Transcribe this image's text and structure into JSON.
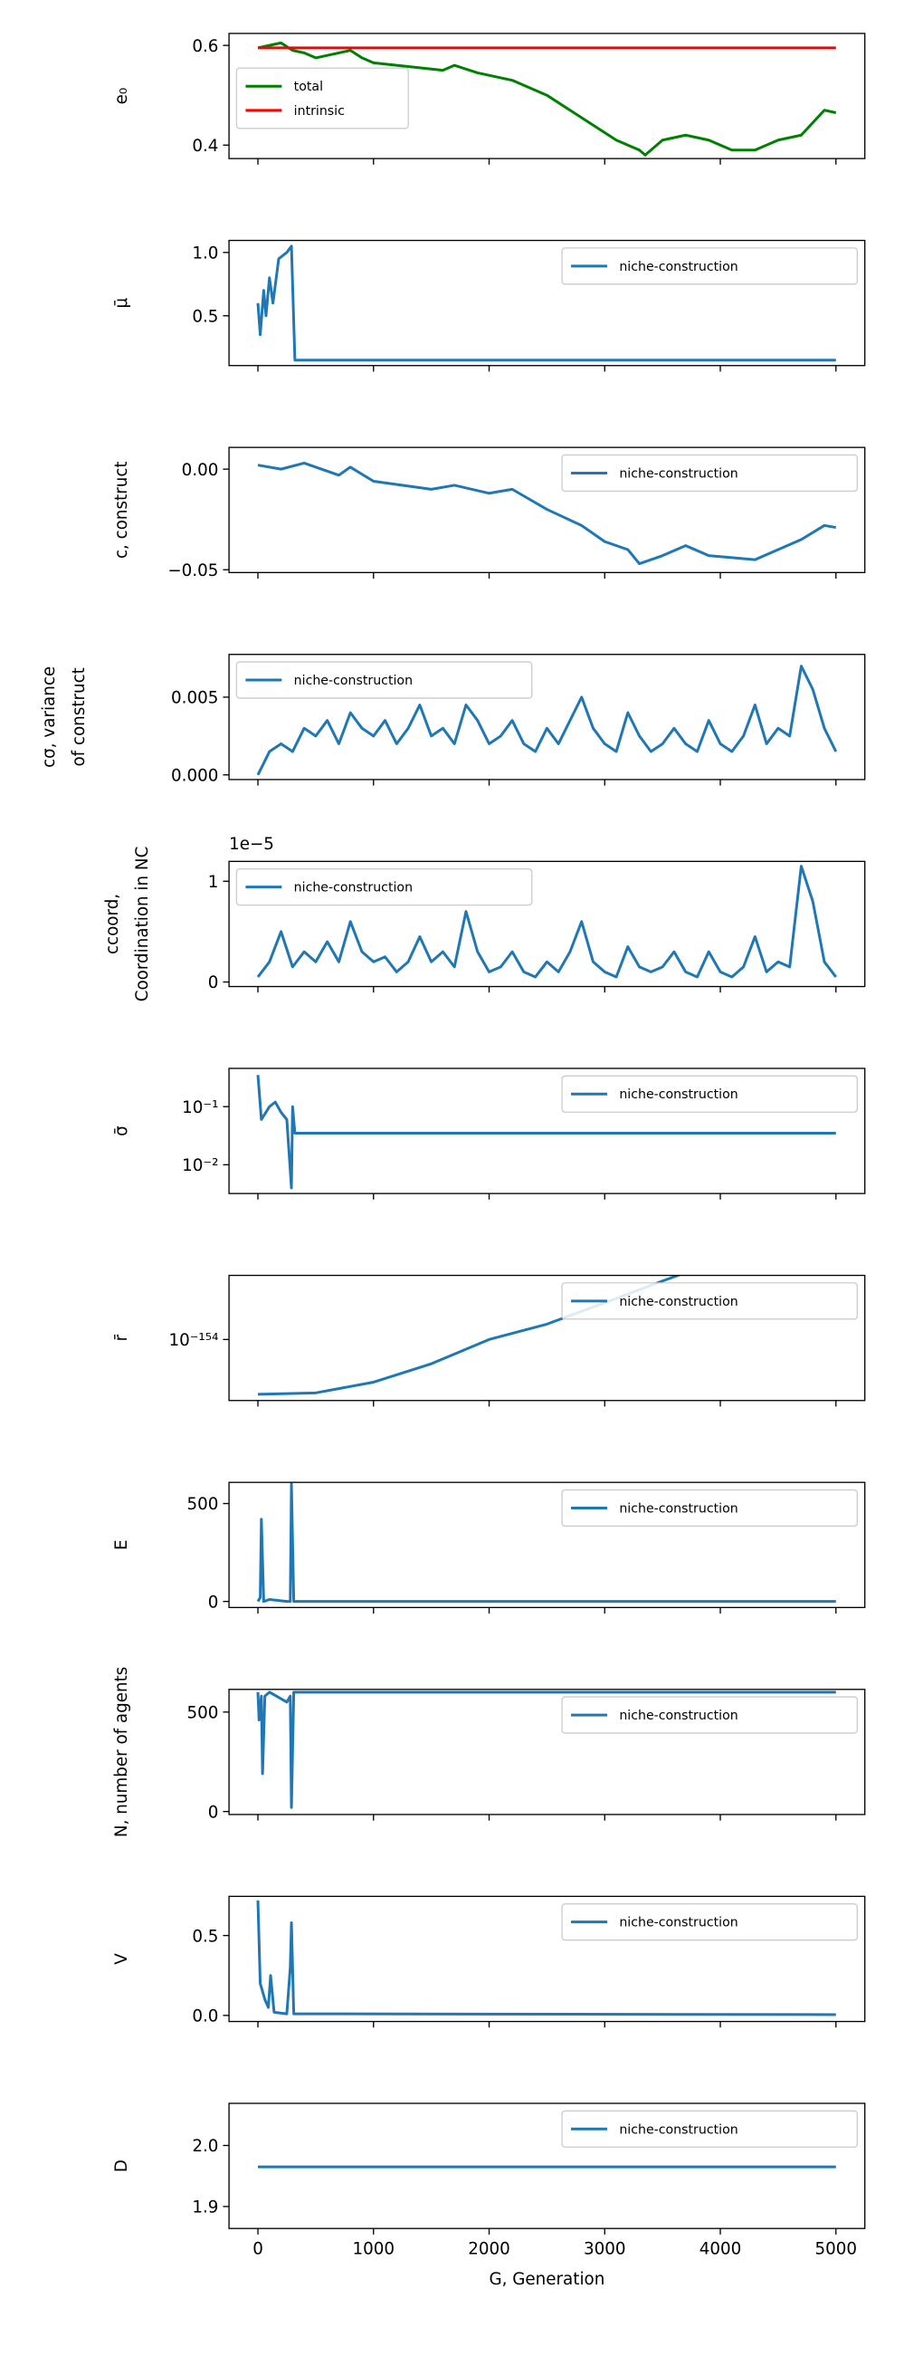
{
  "chart_data": [
    {
      "type": "line",
      "ylabel": "e₀",
      "xlim": [
        -250,
        5250
      ],
      "xticks": [
        0,
        1000,
        2000,
        3000,
        4000,
        5000
      ],
      "ylim": [
        0.373,
        0.624
      ],
      "yticks": [
        0.4,
        0.6
      ],
      "legend": "upper left",
      "x": [
        0,
        100,
        200,
        300,
        400,
        500,
        600,
        700,
        800,
        900,
        1000,
        1200,
        1400,
        1600,
        1700,
        1900,
        2200,
        2500,
        2700,
        2900,
        3100,
        3300,
        3350,
        3500,
        3700,
        3900,
        4100,
        4300,
        4500,
        4700,
        4900,
        5000
      ],
      "series": [
        {
          "name": "total",
          "color": "#008000",
          "values": [
            0.595,
            0.6,
            0.605,
            0.59,
            0.585,
            0.575,
            0.58,
            0.585,
            0.59,
            0.575,
            0.565,
            0.56,
            0.555,
            0.55,
            0.56,
            0.545,
            0.53,
            0.5,
            0.47,
            0.44,
            0.41,
            0.39,
            0.38,
            0.41,
            0.42,
            0.41,
            0.39,
            0.39,
            0.41,
            0.42,
            0.47,
            0.465
          ]
        },
        {
          "name": "intrinsic",
          "color": "#ff0000",
          "values": [
            0.595,
            0.595,
            0.595,
            0.595,
            0.595,
            0.595,
            0.595,
            0.595,
            0.595,
            0.595,
            0.595,
            0.595,
            0.595,
            0.595,
            0.595,
            0.595,
            0.595,
            0.595,
            0.595,
            0.595,
            0.595,
            0.595,
            0.595,
            0.595,
            0.595,
            0.595,
            0.595,
            0.595,
            0.595,
            0.595,
            0.595,
            0.595
          ]
        }
      ]
    },
    {
      "type": "line",
      "ylabel": "μ̄",
      "xlim": [
        -250,
        5250
      ],
      "xticks": [
        0,
        1000,
        2000,
        3000,
        4000,
        5000
      ],
      "ylim": [
        0.107,
        1.095
      ],
      "yticks": [
        0.5,
        {
          "value": 1,
          "label": "1.0"
        }
      ],
      "legend": "upper right",
      "x": [
        0,
        20,
        50,
        70,
        100,
        130,
        180,
        250,
        290,
        320,
        5000
      ],
      "series": [
        {
          "name": "niche-construction",
          "color": "#1f77b4",
          "values": [
            0.6,
            0.35,
            0.7,
            0.5,
            0.8,
            0.6,
            0.95,
            1.0,
            1.05,
            0.15,
            0.15
          ]
        }
      ]
    },
    {
      "type": "line",
      "ylabel": "c, construct",
      "xlim": [
        -250,
        5250
      ],
      "xticks": [
        0,
        1000,
        2000,
        3000,
        4000,
        5000
      ],
      "ylim": [
        -0.0514,
        0.0108
      ],
      "yticks": [
        {
          "value": -0.05,
          "label": "−0.05"
        },
        {
          "value": 0,
          "label": "0.00"
        }
      ],
      "legend": "upper right",
      "x": [
        0,
        200,
        400,
        700,
        800,
        1000,
        1500,
        1700,
        2000,
        2200,
        2500,
        2800,
        3000,
        3200,
        3300,
        3500,
        3700,
        3900,
        4100,
        4300,
        4500,
        4700,
        4900,
        5000
      ],
      "series": [
        {
          "name": "niche-construction",
          "color": "#1f77b4",
          "values": [
            0.002,
            0,
            0.003,
            -0.003,
            0.001,
            -0.006,
            -0.01,
            -0.008,
            -0.012,
            -0.01,
            -0.02,
            -0.028,
            -0.036,
            -0.04,
            -0.047,
            -0.043,
            -0.038,
            -0.043,
            -0.044,
            -0.045,
            -0.04,
            -0.035,
            -0.028,
            -0.029
          ]
        }
      ]
    },
    {
      "type": "line",
      "ylabel": [
        "cσ, variance",
        "of construct"
      ],
      "xlim": [
        -250,
        5250
      ],
      "xticks": [
        0,
        1000,
        2000,
        3000,
        4000,
        5000
      ],
      "ylim": [
        -0.0003,
        0.00775
      ],
      "yticks": [
        {
          "value": 0,
          "label": "0.000"
        },
        0.005
      ],
      "legend": "upper left",
      "x": [
        0,
        100,
        200,
        300,
        400,
        500,
        600,
        700,
        800,
        900,
        1000,
        1100,
        1200,
        1300,
        1400,
        1500,
        1600,
        1700,
        1800,
        1900,
        2000,
        2100,
        2200,
        2300,
        2400,
        2500,
        2600,
        2700,
        2800,
        2900,
        3000,
        3100,
        3200,
        3300,
        3400,
        3500,
        3600,
        3700,
        3800,
        3900,
        4000,
        4100,
        4200,
        4300,
        4400,
        4500,
        4600,
        4700,
        4800,
        4900,
        5000
      ],
      "series": [
        {
          "name": "niche-construction",
          "color": "#1f77b4",
          "values": [
            0.0,
            0.0015,
            0.002,
            0.0015,
            0.003,
            0.0025,
            0.0035,
            0.002,
            0.004,
            0.003,
            0.0025,
            0.0035,
            0.002,
            0.003,
            0.0045,
            0.0025,
            0.003,
            0.002,
            0.0045,
            0.0035,
            0.002,
            0.0025,
            0.0035,
            0.002,
            0.0015,
            0.003,
            0.002,
            0.0035,
            0.005,
            0.003,
            0.002,
            0.0015,
            0.004,
            0.0025,
            0.0015,
            0.002,
            0.003,
            0.002,
            0.0015,
            0.0035,
            0.002,
            0.0015,
            0.0025,
            0.0045,
            0.002,
            0.003,
            0.0025,
            0.007,
            0.0055,
            0.003,
            0.0015
          ]
        }
      ]
    },
    {
      "type": "line",
      "ylabel": [
        "ccoord,",
        "Coordination in NC"
      ],
      "offset_text": "1e−5",
      "xlim": [
        -250,
        5250
      ],
      "xticks": [
        0,
        1000,
        2000,
        3000,
        4000,
        5000
      ],
      "ylim": [
        -0.045,
        1.197
      ],
      "yticks": [
        0,
        1
      ],
      "legend": "upper left",
      "x": [
        0,
        100,
        200,
        300,
        400,
        500,
        600,
        700,
        800,
        900,
        1000,
        1100,
        1200,
        1300,
        1400,
        1500,
        1600,
        1700,
        1800,
        1900,
        2000,
        2100,
        2200,
        2300,
        2400,
        2500,
        2600,
        2700,
        2800,
        2900,
        3000,
        3100,
        3200,
        3300,
        3400,
        3500,
        3600,
        3700,
        3800,
        3900,
        4000,
        4100,
        4200,
        4300,
        4400,
        4500,
        4600,
        4700,
        4800,
        4900,
        5000
      ],
      "series": [
        {
          "name": "niche-construction",
          "color": "#1f77b4",
          "values": [
            0.05,
            0.2,
            0.5,
            0.15,
            0.3,
            0.2,
            0.4,
            0.2,
            0.6,
            0.3,
            0.2,
            0.25,
            0.1,
            0.2,
            0.45,
            0.2,
            0.3,
            0.15,
            0.7,
            0.3,
            0.1,
            0.15,
            0.3,
            0.1,
            0.05,
            0.2,
            0.1,
            0.3,
            0.6,
            0.2,
            0.1,
            0.05,
            0.35,
            0.15,
            0.1,
            0.15,
            0.3,
            0.1,
            0.05,
            0.3,
            0.1,
            0.05,
            0.15,
            0.45,
            0.1,
            0.2,
            0.15,
            1.15,
            0.8,
            0.2,
            0.05
          ]
        }
      ]
    },
    {
      "type": "line",
      "ylabel": "σ̄",
      "log_y": true,
      "xlim": [
        -250,
        5250
      ],
      "xticks": [
        0,
        1000,
        2000,
        3000,
        4000,
        5000
      ],
      "ylim": [
        0.0032,
        0.455
      ],
      "yticks": [
        {
          "value": 0.01,
          "label": "10⁻²"
        },
        {
          "value": 0.1,
          "label": "10⁻¹"
        }
      ],
      "legend": "upper right",
      "x": [
        0,
        30,
        100,
        150,
        200,
        250,
        290,
        300,
        320,
        5000
      ],
      "series": [
        {
          "name": "niche-construction",
          "color": "#1f77b4",
          "values": [
            0.35,
            0.06,
            0.1,
            0.12,
            0.08,
            0.06,
            0.004,
            0.1,
            0.035,
            0.035
          ]
        }
      ]
    },
    {
      "type": "line",
      "ylabel": "r̄",
      "log_y": true,
      "xlim": [
        -250,
        5250
      ],
      "xticks": [
        0,
        1000,
        2000,
        3000,
        4000,
        5000
      ],
      "ylim": [
        1e-153,
        8.9e-156
      ],
      "yticks": [
        {
          "value": 1e-154,
          "label": "10⁻¹⁵⁴"
        }
      ],
      "legend": "upper right",
      "x": [
        0,
        500,
        1000,
        1500,
        2000,
        2500,
        3000,
        3500,
        3700
      ],
      "series": [
        {
          "name": "niche-construction",
          "color": "#1f77b4",
          "values": [
            7.9e-154,
            7.5e-154,
            5e-154,
            2.5e-154,
            1e-154,
            5.6e-155,
            2.5e-155,
            1.1e-155,
            8e-156
          ]
        }
      ]
    },
    {
      "type": "line",
      "ylabel": "E",
      "xlim": [
        -250,
        5250
      ],
      "xticks": [
        0,
        1000,
        2000,
        3000,
        4000,
        5000
      ],
      "ylim": [
        -31,
        608
      ],
      "yticks": [
        0,
        500
      ],
      "legend": "upper right",
      "x": [
        0,
        20,
        30,
        50,
        100,
        250,
        280,
        290,
        310,
        5000
      ],
      "series": [
        {
          "name": "niche-construction",
          "color": "#1f77b4",
          "values": [
            0,
            20,
            420,
            0,
            10,
            0,
            0,
            600,
            0,
            0
          ]
        }
      ]
    },
    {
      "type": "line",
      "ylabel": "N, number of agents",
      "xlim": [
        -250,
        5250
      ],
      "xticks": [
        0,
        1000,
        2000,
        3000,
        4000,
        5000
      ],
      "ylim": [
        -15,
        614
      ],
      "yticks": [
        0,
        500
      ],
      "legend": "upper right",
      "x": [
        0,
        10,
        30,
        40,
        60,
        100,
        250,
        280,
        290,
        310,
        5000
      ],
      "series": [
        {
          "name": "niche-construction",
          "color": "#1f77b4",
          "values": [
            600,
            460,
            580,
            190,
            580,
            600,
            550,
            580,
            20,
            600,
            600
          ]
        }
      ]
    },
    {
      "type": "line",
      "ylabel": "V",
      "xlim": [
        -250,
        5250
      ],
      "xticks": [
        0,
        1000,
        2000,
        3000,
        4000,
        5000
      ],
      "ylim": [
        -0.038,
        0.745
      ],
      "yticks": [
        {
          "value": 0,
          "label": "0.0"
        },
        0.5
      ],
      "legend": "upper right",
      "x": [
        0,
        20,
        60,
        90,
        110,
        140,
        250,
        280,
        290,
        310,
        5000
      ],
      "series": [
        {
          "name": "niche-construction",
          "color": "#1f77b4",
          "values": [
            0.72,
            0.2,
            0.1,
            0.05,
            0.25,
            0.02,
            0.01,
            0.3,
            0.58,
            0.01,
            0.005
          ]
        }
      ]
    },
    {
      "type": "line",
      "ylabel": "D",
      "xlabel": "G, Generation",
      "xlim": [
        -250,
        5250
      ],
      "xticks": [
        0,
        1000,
        2000,
        3000,
        4000,
        5000
      ],
      "ylim": [
        1.864,
        2.069
      ],
      "yticks": [
        1.9,
        {
          "value": 2,
          "label": "2.0"
        }
      ],
      "legend": "upper right",
      "x": [
        0,
        5000
      ],
      "series": [
        {
          "name": "niche-construction",
          "color": "#1f77b4",
          "values": [
            1.965,
            1.965
          ]
        }
      ]
    }
  ]
}
